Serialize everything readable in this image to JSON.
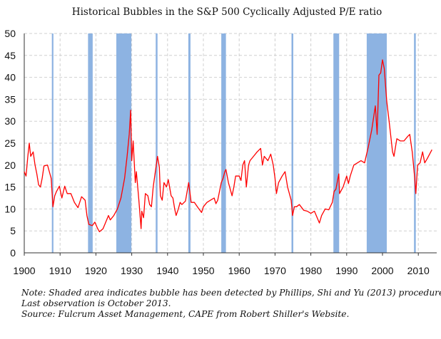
{
  "chart_data": {
    "type": "line",
    "title": "Historical Bubbles in the S&P 500 Cyclically Adjusted P/E ratio",
    "xlabel": "",
    "ylabel": "",
    "xlim": [
      1900,
      2015
    ],
    "ylim": [
      0,
      50
    ],
    "x_ticks": [
      "1900",
      "1910",
      "1920",
      "1930",
      "1940",
      "1950",
      "1960",
      "1970",
      "1980",
      "1990",
      "2000",
      "2010"
    ],
    "y_ticks": [
      "0",
      "5",
      "10",
      "15",
      "20",
      "25",
      "30",
      "35",
      "40",
      "45",
      "50"
    ],
    "grid": true,
    "line_color": "#ff0000",
    "band_color": "#8db3e2",
    "bubble_periods": [
      [
        1907.7,
        1908.1
      ],
      [
        1917.8,
        1919.1
      ],
      [
        1925.7,
        1929.9
      ],
      [
        1936.7,
        1937.2
      ],
      [
        1945.8,
        1946.4
      ],
      [
        1955.0,
        1956.3
      ],
      [
        1974.6,
        1975.1
      ],
      [
        1986.3,
        1987.9
      ],
      [
        1995.6,
        2001.2
      ],
      [
        2008.8,
        2009.3
      ]
    ],
    "series": [
      {
        "x": [
          1900,
          1900.5,
          1901,
          1901.4,
          1901.8,
          1902.5,
          1903,
          1903.5,
          1904,
          1904.5,
          1905,
          1905.5,
          1906.5,
          1907,
          1907.5,
          1908,
          1908.5,
          1909,
          1909.8,
          1910.5,
          1911.3,
          1912,
          1913,
          1914,
          1915,
          1916,
          1917,
          1917.5,
          1918,
          1919,
          1919.7,
          1920.5,
          1921,
          1922,
          1923,
          1923.5,
          1924,
          1925,
          1926,
          1927,
          1928,
          1928.7,
          1929.3,
          1929.7,
          1930,
          1930.4,
          1931,
          1931.3,
          1932,
          1932.6,
          1932.8,
          1933.3,
          1933.8,
          1934.5,
          1935,
          1935.5,
          1936,
          1936.6,
          1937.2,
          1937.7,
          1938,
          1938.5,
          1939,
          1939.7,
          1940.2,
          1941,
          1941.5,
          1942,
          1942.4,
          1943,
          1943.5,
          1944,
          1945,
          1945.9,
          1946.6,
          1947.5,
          1948.5,
          1949.5,
          1950,
          1951,
          1952,
          1953,
          1953.5,
          1954,
          1955,
          1955.5,
          1956,
          1956.3,
          1957,
          1958,
          1958.5,
          1959,
          1960,
          1960.5,
          1961,
          1961.5,
          1962,
          1962.6,
          1963,
          1964,
          1965,
          1966,
          1966.5,
          1967,
          1968,
          1968.8,
          1969.5,
          1970,
          1970.4,
          1971,
          1972,
          1972.8,
          1973.5,
          1974.5,
          1974.9,
          1975.4,
          1976,
          1976.8,
          1978,
          1979,
          1980,
          1981,
          1982.4,
          1983,
          1984,
          1985,
          1986,
          1986.5,
          1987,
          1987.8,
          1988,
          1989,
          1990,
          1990.5,
          1991,
          1992,
          1993,
          1994,
          1995,
          1996,
          1997,
          1998,
          1998.5,
          1999,
          1999.5,
          2000,
          2000.5,
          2001.2,
          2002,
          2002.8,
          2003.2,
          2004,
          2005,
          2006,
          2007,
          2007.6,
          2008.3,
          2009,
          2009.3,
          2009.8,
          2010.5,
          2011.2,
          2011.8,
          2012.5,
          2013.8
        ],
        "y": [
          18.5,
          17.5,
          22,
          25,
          22,
          23,
          20,
          18,
          15.5,
          15,
          17,
          19.8,
          20,
          18.5,
          17,
          10.5,
          13,
          14,
          15.2,
          12.5,
          15.2,
          13.5,
          13.5,
          11.5,
          10.3,
          12.8,
          12,
          8.5,
          6.5,
          6.2,
          7,
          5.5,
          4.8,
          5.5,
          7.5,
          8.5,
          7.5,
          8.5,
          10,
          12.5,
          17,
          22,
          27,
          32.5,
          21,
          25.5,
          16,
          18.5,
          12,
          5.5,
          9.5,
          8,
          13.5,
          13,
          11,
          10.5,
          15,
          18.5,
          22,
          19.5,
          13,
          12,
          16,
          15,
          16.7,
          13,
          12.5,
          10,
          8.5,
          10,
          11.5,
          11,
          11.8,
          16,
          11.5,
          11.5,
          10.3,
          9.2,
          10.5,
          11.5,
          12,
          12.5,
          11.2,
          12,
          16,
          17,
          18.5,
          19,
          16,
          13,
          15,
          17.5,
          17.5,
          16.5,
          20,
          21,
          15,
          20,
          21,
          22,
          23,
          23.8,
          20,
          22,
          21,
          22.5,
          20,
          17,
          13.5,
          16,
          17.5,
          18.5,
          15,
          12,
          8.5,
          10.5,
          10.5,
          11,
          9.7,
          9.5,
          9,
          9.5,
          6.8,
          8.5,
          10,
          9.8,
          11.5,
          14,
          14.5,
          18,
          13.5,
          15,
          17.5,
          15.8,
          17.5,
          20,
          20.5,
          21,
          20.5,
          24,
          28,
          33.5,
          27,
          40.5,
          41,
          44,
          42,
          34.5,
          29,
          23,
          22,
          26,
          25.5,
          25.5,
          26.5,
          27,
          23,
          17,
          13.5,
          20,
          20.5,
          23,
          20.5,
          21.5,
          23.5
        ]
      }
    ]
  },
  "notes": [
    "Note: Shaded area indicates bubble has been detected by Phillips, Shi and Yu (2013) procedure",
    "Last observation is October 2013.",
    "Source: Fulcrum Asset Management, CAPE from Robert Shiller's Website."
  ]
}
